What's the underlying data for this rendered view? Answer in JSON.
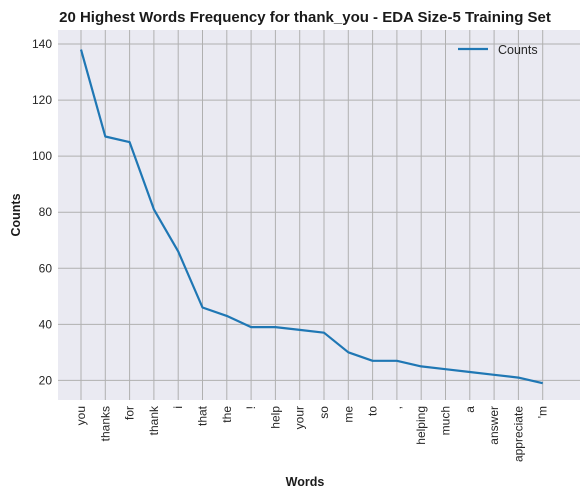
{
  "chart_data": {
    "type": "line",
    "title": "20 Highest Words Frequency for thank_you - EDA Size-5 Training Set",
    "xlabel": "Words",
    "ylabel": "Counts",
    "categories": [
      "you",
      "thanks",
      "for",
      "thank",
      "i",
      "that",
      "the",
      "!",
      "help",
      "your",
      "so",
      "me",
      "to",
      ",",
      "helping",
      "much",
      "a",
      "answer",
      "appreciate",
      "'m"
    ],
    "series": [
      {
        "name": "Counts",
        "values": [
          138,
          107,
          105,
          81,
          66,
          46,
          43,
          39,
          39,
          38,
          37,
          30,
          27,
          27,
          25,
          24,
          23,
          22,
          21,
          19
        ]
      }
    ],
    "ylim": [
      13,
      145
    ],
    "yticks": [
      20,
      40,
      60,
      80,
      100,
      120,
      140
    ],
    "grid": true,
    "legend_position": "top-right",
    "colors": {
      "line": "#1f77b4",
      "plot_bg": "#eaeaf2",
      "grid": "#b0b0b0"
    }
  }
}
